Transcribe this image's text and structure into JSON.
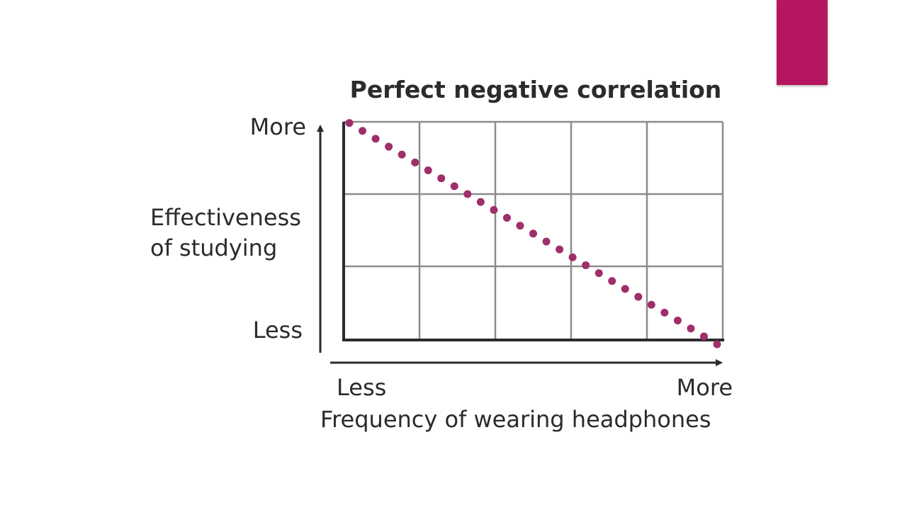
{
  "slide": {
    "accent_color": "#b5165f"
  },
  "chart_data": {
    "type": "scatter",
    "title": "Perfect negative correlation",
    "xlabel": "Frequency of wearing headphones",
    "ylabel_line1": "Effectiveness",
    "ylabel_line2": "of studying",
    "x_tick_labels": {
      "low": "Less",
      "high": "More"
    },
    "y_tick_labels": {
      "low": "Less",
      "high": "More"
    },
    "xlim": [
      0,
      1
    ],
    "ylim": [
      0,
      1
    ],
    "grid": true,
    "grid_columns": 5,
    "grid_rows": 3,
    "point_color": "#9e2f6a",
    "series": [
      {
        "x": [
          0,
          0.0357,
          0.0714,
          0.1071,
          0.1429,
          0.1786,
          0.2143,
          0.25,
          0.2857,
          0.3214,
          0.3571,
          0.3929,
          0.4286,
          0.4643,
          0.5,
          0.5357,
          0.5714,
          0.6071,
          0.6429,
          0.6786,
          0.7143,
          0.75,
          0.7857,
          0.8214,
          0.8571,
          0.8929,
          0.9286,
          0.9643,
          1
        ],
        "y": [
          1,
          0.9643,
          0.9286,
          0.8929,
          0.8571,
          0.8214,
          0.7857,
          0.75,
          0.7143,
          0.6786,
          0.6429,
          0.6071,
          0.5714,
          0.5357,
          0.5,
          0.4643,
          0.4286,
          0.3929,
          0.3571,
          0.3214,
          0.2857,
          0.25,
          0.2143,
          0.1786,
          0.1429,
          0.1071,
          0.0714,
          0.0357,
          0
        ]
      }
    ]
  }
}
